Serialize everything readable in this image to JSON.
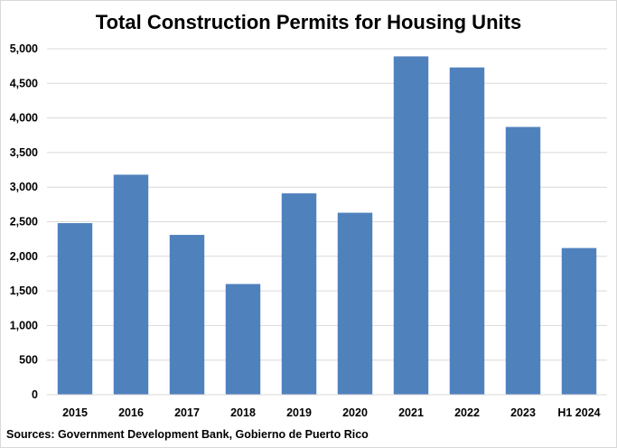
{
  "chart_data": {
    "type": "bar",
    "title": "Total Construction Permits for Housing Units",
    "categories": [
      "2015",
      "2016",
      "2017",
      "2018",
      "2019",
      "2020",
      "2021",
      "2022",
      "2023",
      "H1 2024"
    ],
    "series": [
      {
        "values": [
          2480,
          3180,
          2310,
          1600,
          2910,
          2630,
          4890,
          4730,
          3870,
          2120
        ]
      }
    ],
    "y_ticks": [
      "0",
      "500",
      "1,000",
      "1,500",
      "2,000",
      "2,500",
      "3,000",
      "3,500",
      "4,000",
      "4,500",
      "5,000"
    ],
    "ylim": [
      0,
      5000
    ],
    "xlabel": "",
    "ylabel": "",
    "grid": true,
    "bar_color": "#4f81bd",
    "grid_color": "#d9d9d9"
  },
  "footer": {
    "source": "Sources: Government Development Bank, Gobierno de Puerto Rico"
  }
}
